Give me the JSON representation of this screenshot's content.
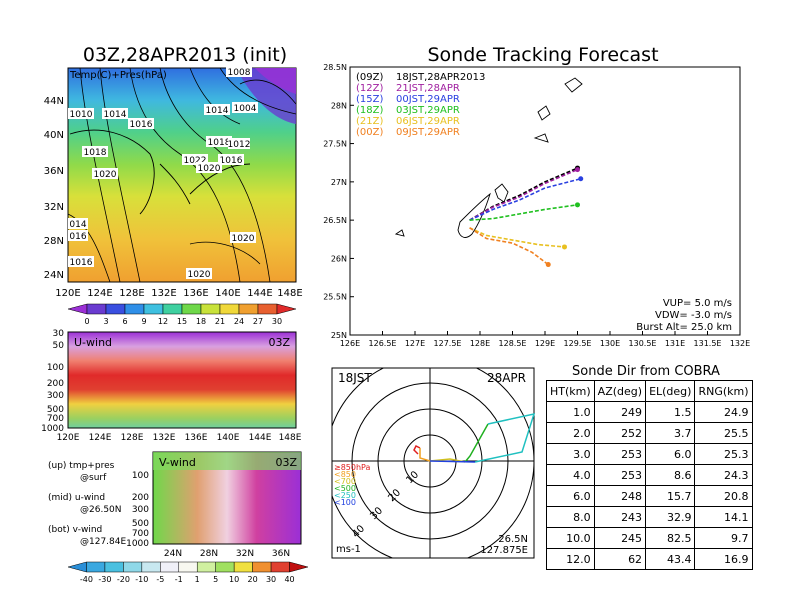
{
  "map": {
    "title": "03Z,28APR2013 (init)",
    "field_label": "Temp(C)+Pres(hPa)",
    "lat_ticks": [
      "44N",
      "40N",
      "36N",
      "32N",
      "28N",
      "24N"
    ],
    "lon_ticks": [
      "120E",
      "124E",
      "128E",
      "132E",
      "136E",
      "140E",
      "144E",
      "148E"
    ],
    "pressure_labels": [
      "1010",
      "1014",
      "1016",
      "1018",
      "1020",
      "1022",
      "1020",
      "1018",
      "1016",
      "1014",
      "1004",
      "1008",
      "1012",
      "014",
      "016",
      "1016",
      "1020",
      "1020"
    ],
    "colorbar_ticks": [
      "0",
      "3",
      "6",
      "9",
      "12",
      "15",
      "18",
      "21",
      "24",
      "27",
      "30"
    ],
    "colorbar_colors": [
      "#9b2fd6",
      "#6a3bd0",
      "#3a4fe0",
      "#2f8fe8",
      "#3fc0e0",
      "#3fd0a0",
      "#6fd84a",
      "#c8e23a",
      "#f0d83a",
      "#f0a030",
      "#e86030",
      "#e02a2a"
    ]
  },
  "uwind": {
    "label": "U-wind",
    "time": "03Z",
    "y_ticks": [
      "30",
      "50",
      "100",
      "200",
      "300",
      "500",
      "700",
      "1000"
    ],
    "x_ticks": [
      "120E",
      "124E",
      "128E",
      "132E",
      "136E",
      "140E",
      "144E",
      "148E"
    ]
  },
  "vwind": {
    "label": "V-wind",
    "time": "03Z",
    "y_ticks": [
      "100",
      "200",
      "300",
      "500",
      "700",
      "1000"
    ],
    "x_ticks": [
      "24N",
      "28N",
      "32N",
      "36N"
    ],
    "colorbar_ticks": [
      "-40",
      "-30",
      "-20",
      "-10",
      "-5",
      "-1",
      "1",
      "5",
      "10",
      "20",
      "30",
      "40"
    ],
    "colorbar_colors": [
      "#2a8fd8",
      "#3aa8e0",
      "#4ac0e0",
      "#8fd8e8",
      "#c8e8f0",
      "#f0f0f8",
      "#f8f8f0",
      "#d0f0a0",
      "#a0e060",
      "#f0e040",
      "#f09030",
      "#e04030",
      "#c01010"
    ]
  },
  "legend_notes": {
    "up": "(up) tmp+pres",
    "up2": "@surf",
    "mid": "(mid) u-wind",
    "mid2": "@26.50N",
    "bot": "(bot) v-wind",
    "bot2": "@127.84E"
  },
  "tracking": {
    "title": "Sonde Tracking Forecast",
    "lat_ticks": [
      "28.5N",
      "28N",
      "27.5N",
      "27N",
      "26.5N",
      "26N",
      "25.5N",
      "25N"
    ],
    "lon_ticks": [
      "126E",
      "126.5E",
      "127E",
      "127.5E",
      "128E",
      "128.5E",
      "129E",
      "129.5E",
      "130E",
      "130.5E",
      "131E",
      "131.5E",
      "132E"
    ],
    "legend": [
      {
        "utc": "(09Z)",
        "local": "18JST,28APR2013",
        "color": "#000000"
      },
      {
        "utc": "(12Z)",
        "local": "21JST,28APR",
        "color": "#a020a0"
      },
      {
        "utc": "(15Z)",
        "local": "00JST,29APR",
        "color": "#2a40e0"
      },
      {
        "utc": "(18Z)",
        "local": "03JST,29APR",
        "color": "#20c020"
      },
      {
        "utc": "(21Z)",
        "local": "06JST,29APR",
        "color": "#e8c020"
      },
      {
        "utc": "(00Z)",
        "local": "09JST,29APR",
        "color": "#f08020"
      }
    ],
    "vup": "VUP=  5.0  m/s",
    "vdw": "VDW= -3.0  m/s",
    "burst": "Burst Alt=  25.0  km"
  },
  "chart_data": {
    "type": "line",
    "title": "Sonde Tracking Forecast",
    "xlim": [
      126,
      132
    ],
    "ylim": [
      25,
      28.5
    ],
    "series": [
      {
        "name": "18JST,28APR2013",
        "x": [
          127.84,
          128.2,
          128.6,
          129.0,
          129.5
        ],
        "y": [
          26.5,
          26.68,
          26.82,
          27.0,
          27.18
        ]
      },
      {
        "name": "21JST,28APR",
        "x": [
          127.84,
          128.2,
          128.6,
          129.0,
          129.5
        ],
        "y": [
          26.5,
          26.67,
          26.8,
          26.98,
          27.16
        ]
      },
      {
        "name": "00JST,29APR",
        "x": [
          127.84,
          128.2,
          128.6,
          129.0,
          129.55
        ],
        "y": [
          26.5,
          26.64,
          26.76,
          26.92,
          27.04
        ]
      },
      {
        "name": "03JST,29APR",
        "x": [
          127.84,
          128.2,
          128.6,
          129.0,
          129.5
        ],
        "y": [
          26.5,
          26.52,
          26.58,
          26.64,
          26.7
        ]
      },
      {
        "name": "06JST,29APR",
        "x": [
          127.84,
          128.1,
          128.5,
          128.9,
          129.3
        ],
        "y": [
          26.4,
          26.3,
          26.24,
          26.18,
          26.15
        ]
      },
      {
        "name": "09JST,29APR",
        "x": [
          127.84,
          128.1,
          128.5,
          128.8,
          129.05
        ],
        "y": [
          26.4,
          26.26,
          26.2,
          26.08,
          25.92
        ]
      }
    ]
  },
  "hodograph": {
    "left_label": "18JST",
    "right_label": "28APR",
    "unit": "ms-1",
    "lat": "26.5N",
    "lon": "127.875E",
    "ring_labels": [
      "10",
      "20",
      "30",
      "40"
    ],
    "levels": [
      {
        "label": "≥850hPa",
        "color": "#e02020"
      },
      {
        "label": "<850",
        "color": "#f0a020"
      },
      {
        "label": "<700",
        "color": "#d0c020"
      },
      {
        "label": "<500",
        "color": "#20b020"
      },
      {
        "label": "<250",
        "color": "#20c0c0"
      },
      {
        "label": "<100",
        "color": "#2040e0"
      }
    ]
  },
  "sonde_dir": {
    "title": "Sonde Dir from COBRA",
    "headers": [
      "HT(km)",
      "AZ(deg)",
      "EL(deg)",
      "RNG(km)"
    ],
    "rows": [
      [
        "1.0",
        "249",
        "1.5",
        "24.9"
      ],
      [
        "2.0",
        "252",
        "3.7",
        "25.5"
      ],
      [
        "3.0",
        "253",
        "6.0",
        "25.3"
      ],
      [
        "4.0",
        "253",
        "8.6",
        "24.3"
      ],
      [
        "6.0",
        "248",
        "15.7",
        "20.8"
      ],
      [
        "8.0",
        "243",
        "32.9",
        "14.1"
      ],
      [
        "10.0",
        "245",
        "82.5",
        "9.7"
      ],
      [
        "12.0",
        "62",
        "43.4",
        "16.9"
      ]
    ]
  }
}
